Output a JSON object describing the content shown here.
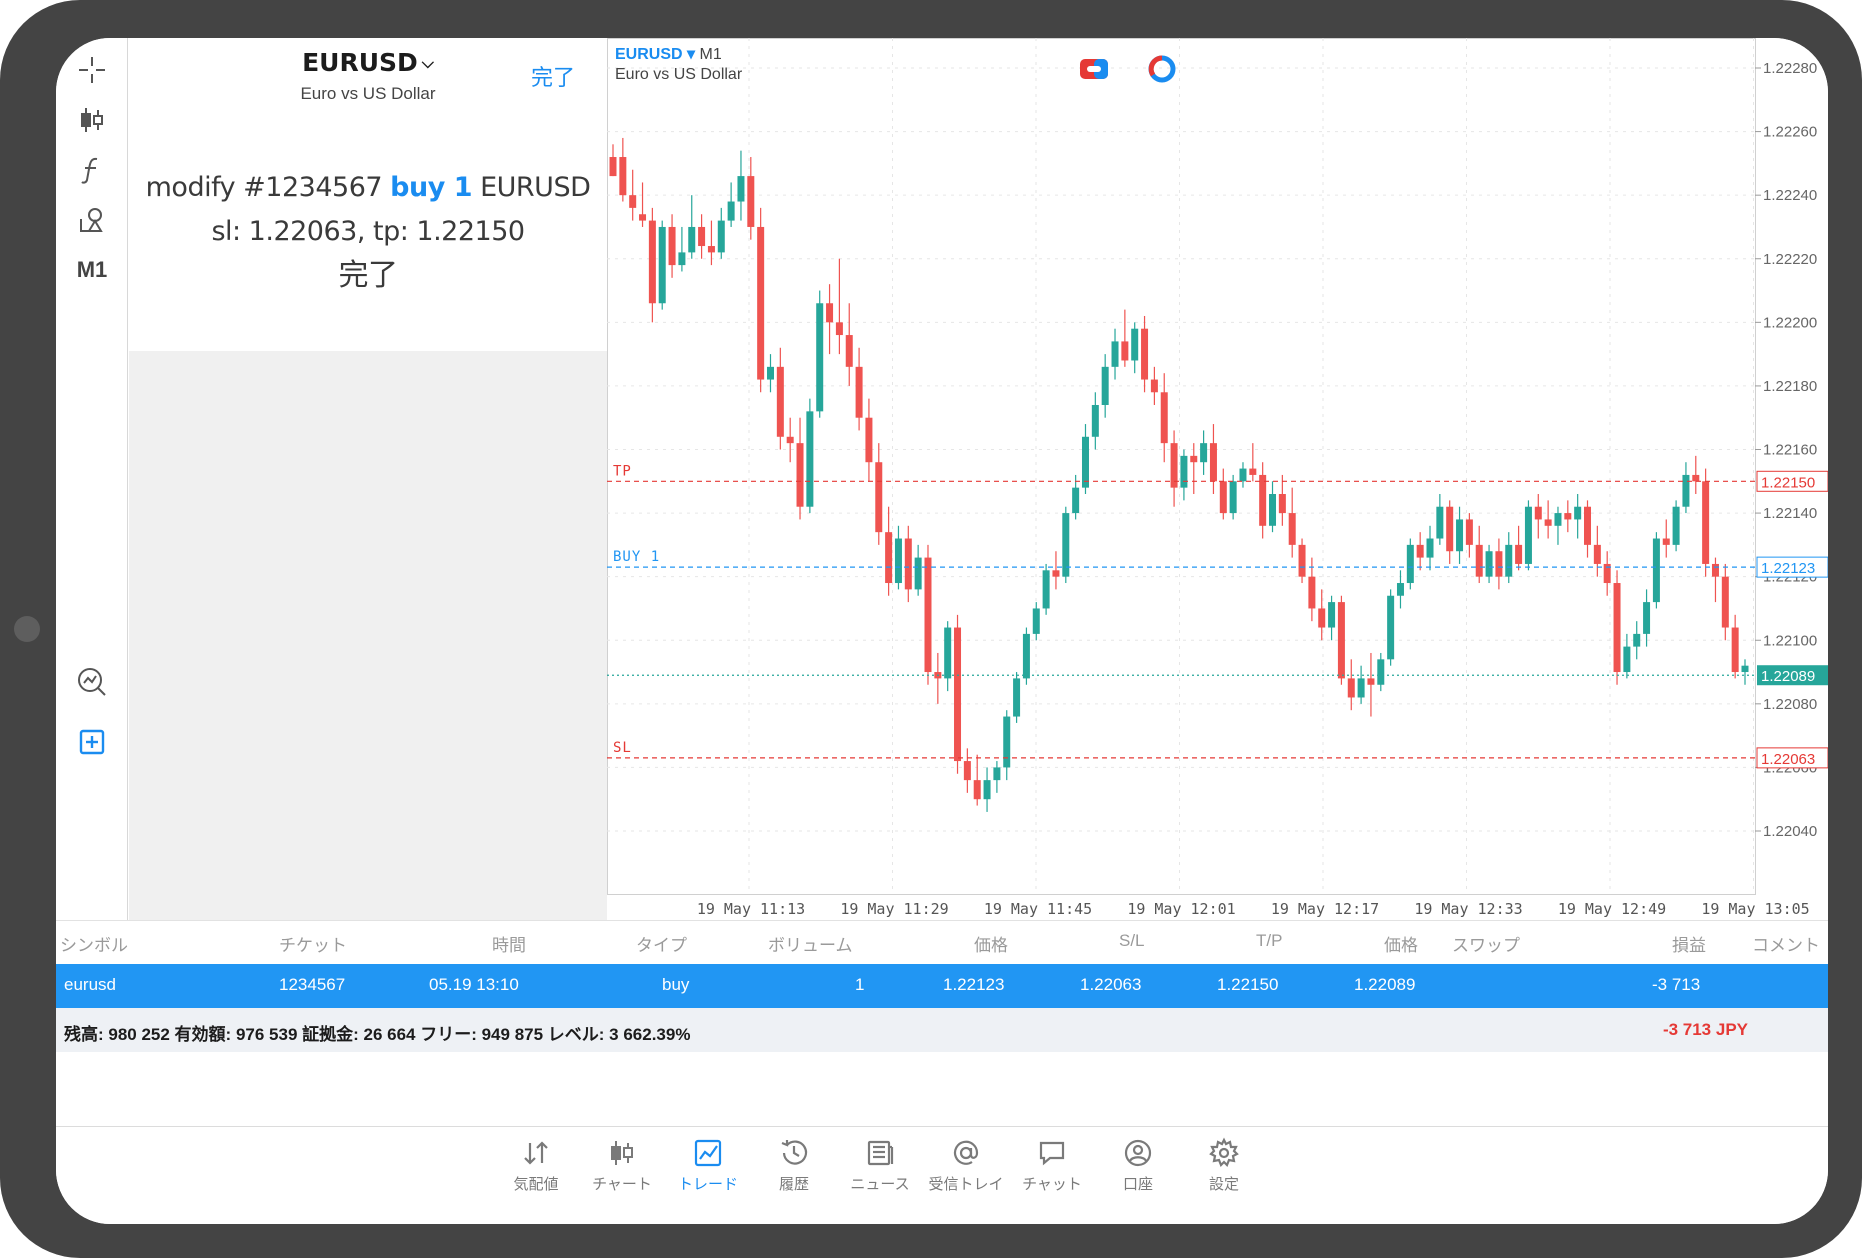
{
  "toolbar": {
    "timeframe": "M1"
  },
  "dialog": {
    "symbol": "EURUSD",
    "description": "Euro vs US Dollar",
    "done_button": "完了",
    "msg_prefix": "modify #1234567",
    "msg_action": "buy 1",
    "msg_suffix": "EURUSD sl: 1.22063, tp: 1.22150",
    "status": "完了"
  },
  "chart": {
    "symbol": "EURUSD",
    "timeframe": "M1",
    "description": "Euro vs US Dollar"
  },
  "chart_data": {
    "type": "candlestick",
    "symbol": "EURUSD",
    "timeframe": "M1",
    "ylim": [
      1.2203,
      1.2229
    ],
    "y_ticks": [
      "1.22280",
      "1.22260",
      "1.22240",
      "1.22220",
      "1.22200",
      "1.22180",
      "1.22160",
      "1.22140",
      "1.22120",
      "1.22100",
      "1.22080",
      "1.22060",
      "1.22040"
    ],
    "x_ticks": [
      "19 May 11:13",
      "19 May 11:29",
      "19 May 11:45",
      "19 May 12:01",
      "19 May 12:17",
      "19 May 12:33",
      "19 May 12:49",
      "19 May 13:05"
    ],
    "grid": true,
    "lines": [
      {
        "label": "TP",
        "price": 1.2215,
        "price_label": "1.22150",
        "color": "#e53935"
      },
      {
        "label": "BUY 1",
        "price": 1.22123,
        "price_label": "1.22123",
        "color": "#2196f3"
      },
      {
        "label": "",
        "price": 1.22089,
        "price_label": "1.22089",
        "color": "#26a69a"
      },
      {
        "label": "SL",
        "price": 1.22063,
        "price_label": "1.22063",
        "color": "#e53935"
      }
    ],
    "ohlc": [
      [
        1.22252,
        1.22256,
        1.22246,
        1.22246
      ],
      [
        1.22252,
        1.22258,
        1.22238,
        1.2224
      ],
      [
        1.2224,
        1.22248,
        1.22232,
        1.22236
      ],
      [
        1.22234,
        1.22244,
        1.2223,
        1.22232
      ],
      [
        1.22232,
        1.22236,
        1.222,
        1.22206
      ],
      [
        1.22206,
        1.22232,
        1.22204,
        1.2223
      ],
      [
        1.2223,
        1.22234,
        1.22214,
        1.22218
      ],
      [
        1.22218,
        1.2223,
        1.22216,
        1.22222
      ],
      [
        1.22222,
        1.2224,
        1.2222,
        1.2223
      ],
      [
        1.2223,
        1.22234,
        1.2222,
        1.22224
      ],
      [
        1.22224,
        1.22232,
        1.22218,
        1.22222
      ],
      [
        1.22222,
        1.22236,
        1.2222,
        1.22232
      ],
      [
        1.22232,
        1.22244,
        1.2223,
        1.22238
      ],
      [
        1.22238,
        1.22254,
        1.22232,
        1.22246
      ],
      [
        1.22246,
        1.22252,
        1.22226,
        1.2223
      ],
      [
        1.2223,
        1.22236,
        1.22178,
        1.22182
      ],
      [
        1.22182,
        1.2219,
        1.22178,
        1.22186
      ],
      [
        1.22186,
        1.22192,
        1.2216,
        1.22164
      ],
      [
        1.22164,
        1.2217,
        1.22156,
        1.22162
      ],
      [
        1.22162,
        1.2217,
        1.22138,
        1.22142
      ],
      [
        1.22142,
        1.22176,
        1.2214,
        1.22172
      ],
      [
        1.22172,
        1.2221,
        1.2217,
        1.22206
      ],
      [
        1.22206,
        1.22212,
        1.2219,
        1.222
      ],
      [
        1.222,
        1.2222,
        1.2219,
        1.22196
      ],
      [
        1.22196,
        1.22206,
        1.2218,
        1.22186
      ],
      [
        1.22186,
        1.22192,
        1.22166,
        1.2217
      ],
      [
        1.2217,
        1.22176,
        1.2215,
        1.22156
      ],
      [
        1.22156,
        1.22162,
        1.2213,
        1.22134
      ],
      [
        1.22134,
        1.22142,
        1.22114,
        1.22118
      ],
      [
        1.22118,
        1.22136,
        1.22116,
        1.22132
      ],
      [
        1.22132,
        1.22136,
        1.22112,
        1.22116
      ],
      [
        1.22116,
        1.2213,
        1.22114,
        1.22126
      ],
      [
        1.22126,
        1.2213,
        1.22086,
        1.2209
      ],
      [
        1.2209,
        1.22096,
        1.2208,
        1.22088
      ],
      [
        1.22088,
        1.22106,
        1.22084,
        1.22104
      ],
      [
        1.22104,
        1.22108,
        1.22058,
        1.22062
      ],
      [
        1.22062,
        1.22066,
        1.22052,
        1.22056
      ],
      [
        1.22056,
        1.22064,
        1.22048,
        1.2205
      ],
      [
        1.2205,
        1.2206,
        1.22046,
        1.22056
      ],
      [
        1.22056,
        1.22062,
        1.22052,
        1.2206
      ],
      [
        1.2206,
        1.22078,
        1.22056,
        1.22076
      ],
      [
        1.22076,
        1.2209,
        1.22074,
        1.22088
      ],
      [
        1.22088,
        1.22104,
        1.22086,
        1.22102
      ],
      [
        1.22102,
        1.22112,
        1.221,
        1.2211
      ],
      [
        1.2211,
        1.22124,
        1.22108,
        1.22122
      ],
      [
        1.22122,
        1.22128,
        1.22116,
        1.2212
      ],
      [
        1.2212,
        1.22142,
        1.22118,
        1.2214
      ],
      [
        1.2214,
        1.22152,
        1.22138,
        1.22148
      ],
      [
        1.22148,
        1.22168,
        1.22146,
        1.22164
      ],
      [
        1.22164,
        1.22178,
        1.2216,
        1.22174
      ],
      [
        1.22174,
        1.2219,
        1.2217,
        1.22186
      ],
      [
        1.22186,
        1.22198,
        1.22182,
        1.22194
      ],
      [
        1.22194,
        1.22204,
        1.22186,
        1.22188
      ],
      [
        1.22188,
        1.222,
        1.22184,
        1.22198
      ],
      [
        1.22198,
        1.22202,
        1.22178,
        1.22182
      ],
      [
        1.22182,
        1.22186,
        1.22174,
        1.22178
      ],
      [
        1.22178,
        1.22184,
        1.22156,
        1.22162
      ],
      [
        1.22162,
        1.22166,
        1.22142,
        1.22148
      ],
      [
        1.22148,
        1.2216,
        1.22144,
        1.22158
      ],
      [
        1.22158,
        1.22162,
        1.22146,
        1.22156
      ],
      [
        1.22156,
        1.22166,
        1.22152,
        1.22162
      ],
      [
        1.22162,
        1.22168,
        1.22146,
        1.2215
      ],
      [
        1.2215,
        1.22154,
        1.22138,
        1.2214
      ],
      [
        1.2214,
        1.22152,
        1.22138,
        1.2215
      ],
      [
        1.2215,
        1.22156,
        1.22148,
        1.22154
      ],
      [
        1.22154,
        1.22162,
        1.2215,
        1.22152
      ],
      [
        1.22152,
        1.22156,
        1.22132,
        1.22136
      ],
      [
        1.22136,
        1.2215,
        1.22134,
        1.22146
      ],
      [
        1.22146,
        1.22152,
        1.22136,
        1.2214
      ],
      [
        1.2214,
        1.22148,
        1.22126,
        1.2213
      ],
      [
        1.2213,
        1.22132,
        1.22118,
        1.2212
      ],
      [
        1.2212,
        1.22126,
        1.22106,
        1.2211
      ],
      [
        1.2211,
        1.22116,
        1.221,
        1.22104
      ],
      [
        1.22104,
        1.22114,
        1.221,
        1.22112
      ],
      [
        1.22112,
        1.22114,
        1.22086,
        1.22088
      ],
      [
        1.22088,
        1.22094,
        1.22078,
        1.22082
      ],
      [
        1.22082,
        1.22092,
        1.2208,
        1.22088
      ],
      [
        1.22088,
        1.22096,
        1.22076,
        1.22086
      ],
      [
        1.22086,
        1.22096,
        1.22084,
        1.22094
      ],
      [
        1.22094,
        1.22116,
        1.22092,
        1.22114
      ],
      [
        1.22114,
        1.22122,
        1.2211,
        1.22118
      ],
      [
        1.22118,
        1.22132,
        1.22116,
        1.2213
      ],
      [
        1.2213,
        1.22134,
        1.22122,
        1.22126
      ],
      [
        1.22126,
        1.22136,
        1.22122,
        1.22132
      ],
      [
        1.22132,
        1.22146,
        1.2213,
        1.22142
      ],
      [
        1.22142,
        1.22144,
        1.22124,
        1.22128
      ],
      [
        1.22128,
        1.22142,
        1.22124,
        1.22138
      ],
      [
        1.22138,
        1.2214,
        1.22126,
        1.2213
      ],
      [
        1.2213,
        1.22136,
        1.22118,
        1.2212
      ],
      [
        1.2212,
        1.2213,
        1.22118,
        1.22128
      ],
      [
        1.22128,
        1.22132,
        1.22116,
        1.2212
      ],
      [
        1.2212,
        1.22134,
        1.22118,
        1.2213
      ],
      [
        1.2213,
        1.22136,
        1.22122,
        1.22124
      ],
      [
        1.22124,
        1.22144,
        1.22122,
        1.22142
      ],
      [
        1.22142,
        1.22146,
        1.22132,
        1.22138
      ],
      [
        1.22138,
        1.22144,
        1.22132,
        1.22136
      ],
      [
        1.22136,
        1.22142,
        1.2213,
        1.2214
      ],
      [
        1.2214,
        1.22144,
        1.22134,
        1.22138
      ],
      [
        1.22138,
        1.22146,
        1.22132,
        1.22142
      ],
      [
        1.22142,
        1.22144,
        1.22126,
        1.2213
      ],
      [
        1.2213,
        1.22136,
        1.2212,
        1.22124
      ],
      [
        1.22124,
        1.22128,
        1.22114,
        1.22118
      ],
      [
        1.22118,
        1.22122,
        1.22086,
        1.2209
      ],
      [
        1.2209,
        1.22102,
        1.22088,
        1.22098
      ],
      [
        1.22098,
        1.22106,
        1.22094,
        1.22102
      ],
      [
        1.22102,
        1.22116,
        1.22098,
        1.22112
      ],
      [
        1.22112,
        1.22134,
        1.2211,
        1.22132
      ],
      [
        1.22132,
        1.22138,
        1.22126,
        1.2213
      ],
      [
        1.2213,
        1.22144,
        1.22128,
        1.22142
      ],
      [
        1.22142,
        1.22156,
        1.2214,
        1.22152
      ],
      [
        1.22152,
        1.22158,
        1.22146,
        1.2215
      ],
      [
        1.2215,
        1.22154,
        1.2212,
        1.22124
      ],
      [
        1.22124,
        1.22126,
        1.22112,
        1.2212
      ],
      [
        1.2212,
        1.22124,
        1.221,
        1.22104
      ],
      [
        1.22104,
        1.22108,
        1.22088,
        1.2209
      ],
      [
        1.2209,
        1.22094,
        1.22086,
        1.22092
      ]
    ]
  },
  "table": {
    "headers": [
      "シンボル",
      "チケット",
      "時間",
      "タイプ",
      "ボリューム",
      "価格",
      "S/L",
      "T/P",
      "価格",
      "スワップ",
      "損益",
      "コメント"
    ],
    "row": {
      "symbol": "eurusd",
      "ticket": "1234567",
      "time": "05.19 13:10",
      "type": "buy",
      "volume": "1",
      "price_open": "1.22123",
      "sl": "1.22063",
      "tp": "1.22150",
      "price_current": "1.22089",
      "swap": "",
      "profit": "-3 713",
      "comment": ""
    },
    "summary": "残高: 980 252 有効額: 976 539 証拠金: 26 664 フリー: 949 875 レベル: 3 662.39%",
    "summary_profit": "-3 713  JPY"
  },
  "nav": {
    "items": [
      {
        "label": "気配値",
        "icon": "quotes-icon"
      },
      {
        "label": "チャート",
        "icon": "chart-icon"
      },
      {
        "label": "トレード",
        "icon": "trade-icon",
        "active": true
      },
      {
        "label": "履歴",
        "icon": "history-icon"
      },
      {
        "label": "ニュース",
        "icon": "news-icon"
      },
      {
        "label": "受信トレイ",
        "icon": "mail-icon"
      },
      {
        "label": "チャット",
        "icon": "chat-icon"
      },
      {
        "label": "口座",
        "icon": "account-icon"
      },
      {
        "label": "設定",
        "icon": "settings-icon"
      }
    ]
  },
  "colors": {
    "accent": "#1a8cf0",
    "bull": "#26a69a",
    "bear": "#ef5350",
    "selected_row": "#2196f3"
  }
}
